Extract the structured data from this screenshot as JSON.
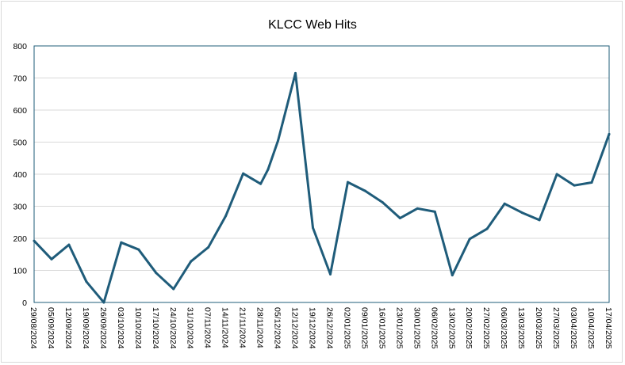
{
  "chart_data": {
    "type": "line",
    "title": "KLCC Web Hits",
    "xlabel": "",
    "ylabel": "",
    "ylim": [
      0,
      800
    ],
    "yticks": [
      0,
      100,
      200,
      300,
      400,
      500,
      600,
      700,
      800
    ],
    "grid": true,
    "legend": "none",
    "x": [
      "29/08/2024",
      "05/09/2024",
      "12/09/2024",
      "19/09/2024",
      "26/09/2024",
      "03/10/2024",
      "10/10/2024",
      "17/10/2024",
      "24/10/2024",
      "31/10/2024",
      "07/11/2024",
      "14/11/2024",
      "21/11/2024",
      "28/11/2024",
      "05/12/2024",
      "12/12/2024",
      "19/12/2024",
      "26/12/2024",
      "02/01/2025",
      "09/01/2025",
      "16/01/2025",
      "23/01/2025",
      "30/01/2025",
      "06/02/2025",
      "13/02/2025",
      "20/02/2025",
      "27/02/2025",
      "06/03/2025",
      "13/03/2025",
      "20/03/2025",
      "27/03/2025",
      "03/04/2025",
      "10/04/2025",
      "17/04/2025"
    ],
    "points": [
      [
        "29/08/2024",
        192
      ],
      [
        "05/09/2024",
        135
      ],
      [
        "12/09/2024",
        180
      ],
      [
        "19/09/2024",
        65
      ],
      [
        "26/09/2024",
        0
      ],
      [
        "03/10/2024",
        187
      ],
      [
        "10/10/2024",
        165
      ],
      [
        "17/10/2024",
        92
      ],
      [
        "24/10/2024",
        42
      ],
      [
        "31/10/2024",
        128
      ],
      [
        "07/11/2024",
        172
      ],
      [
        "14/11/2024",
        270
      ],
      [
        "21/11/2024",
        402
      ],
      [
        "28/11/2024",
        370
      ],
      [
        "01/12/2024",
        415
      ],
      [
        "05/12/2024",
        505
      ],
      [
        "12/12/2024",
        715
      ],
      [
        "19/12/2024",
        233
      ],
      [
        "26/12/2024",
        88
      ],
      [
        "02/01/2025",
        375
      ],
      [
        "09/01/2025",
        348
      ],
      [
        "16/01/2025",
        312
      ],
      [
        "23/01/2025",
        263
      ],
      [
        "30/01/2025",
        293
      ],
      [
        "06/02/2025",
        283
      ],
      [
        "13/02/2025",
        85
      ],
      [
        "20/02/2025",
        198
      ],
      [
        "27/02/2025",
        230
      ],
      [
        "06/03/2025",
        308
      ],
      [
        "13/03/2025",
        280
      ],
      [
        "20/03/2025",
        257
      ],
      [
        "27/03/2025",
        400
      ],
      [
        "03/04/2025",
        365
      ],
      [
        "10/04/2025",
        374
      ],
      [
        "17/04/2025",
        525
      ]
    ],
    "colors": {
      "line": "#1f5c7a",
      "plot_border": "#1f5c7a",
      "grid": "#d9d9d9"
    }
  }
}
